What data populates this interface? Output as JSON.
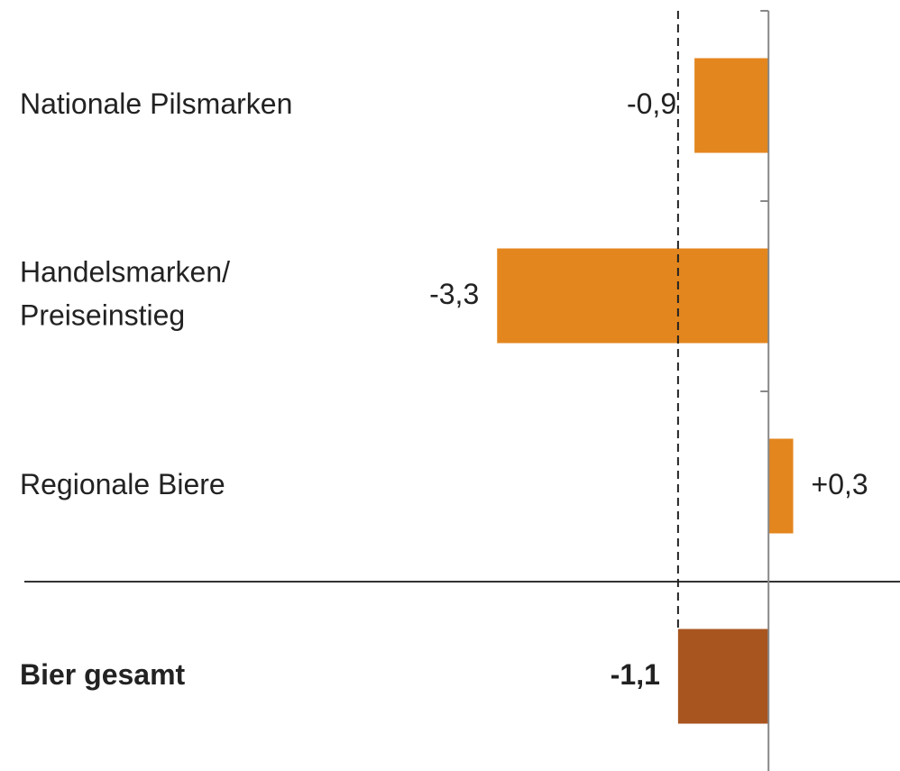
{
  "chart_data": {
    "type": "hbar",
    "categories": [
      "Nationale Pilsmarken",
      "Handelsmarken/\nPreiseinstieg",
      "Regionale Biere",
      "Bier gesamt"
    ],
    "values": [
      -0.9,
      -3.3,
      0.3,
      -1.1
    ],
    "value_labels": [
      "-0,9",
      "-3,3",
      "+0,3",
      "-1,1"
    ],
    "colors": [
      "#e3861e",
      "#e3861e",
      "#e3861e",
      "#a9551f"
    ],
    "xlim": [
      -3.5,
      1.5
    ]
  }
}
